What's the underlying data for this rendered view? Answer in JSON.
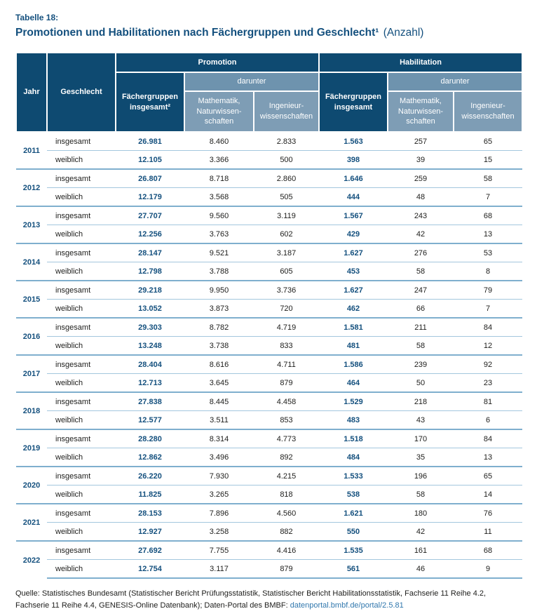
{
  "title": {
    "label": "Tabelle 18:",
    "main": "Promotionen und Habilitationen nach Fächergruppen und Geschlecht¹",
    "suffix": "(Anzahl)"
  },
  "colors": {
    "header_dark": "#0e4a71",
    "header_medium": "#6e93ae",
    "header_light": "#7e9db5",
    "accent_navy": "#14507e",
    "body_text": "#1d1d1b",
    "row_separator": "#a3c7de",
    "group_separator": "#7fafce",
    "link": "#3077ad"
  },
  "header": {
    "jahr": "Jahr",
    "geschlecht": "Geschlecht",
    "promotion": "Promotion",
    "habilitation": "Habilitation",
    "darunter": "darunter",
    "promotion_total": "Fächergruppen\ninsgesamt²",
    "habilitation_total": "Fächergruppen\ninsgesamt",
    "math": "Mathematik,\nNaturwissen-\nschaften",
    "engineering": "Ingenieur-\nwissenschaften"
  },
  "years": [
    {
      "year": "2011",
      "rows": [
        {
          "label": "insgesamt",
          "values": [
            "26.981",
            "8.460",
            "2.833",
            "1.563",
            "257",
            "65"
          ]
        },
        {
          "label": "weiblich",
          "values": [
            "12.105",
            "3.366",
            "500",
            "398",
            "39",
            "15"
          ]
        }
      ]
    },
    {
      "year": "2012",
      "rows": [
        {
          "label": "insgesamt",
          "values": [
            "26.807",
            "8.718",
            "2.860",
            "1.646",
            "259",
            "58"
          ]
        },
        {
          "label": "weiblich",
          "values": [
            "12.179",
            "3.568",
            "505",
            "444",
            "48",
            "7"
          ]
        }
      ]
    },
    {
      "year": "2013",
      "rows": [
        {
          "label": "insgesamt",
          "values": [
            "27.707",
            "9.560",
            "3.119",
            "1.567",
            "243",
            "68"
          ]
        },
        {
          "label": "weiblich",
          "values": [
            "12.256",
            "3.763",
            "602",
            "429",
            "42",
            "13"
          ]
        }
      ]
    },
    {
      "year": "2014",
      "rows": [
        {
          "label": "insgesamt",
          "values": [
            "28.147",
            "9.521",
            "3.187",
            "1.627",
            "276",
            "53"
          ]
        },
        {
          "label": "weiblich",
          "values": [
            "12.798",
            "3.788",
            "605",
            "453",
            "58",
            "8"
          ]
        }
      ]
    },
    {
      "year": "2015",
      "rows": [
        {
          "label": "insgesamt",
          "values": [
            "29.218",
            "9.950",
            "3.736",
            "1.627",
            "247",
            "79"
          ]
        },
        {
          "label": "weiblich",
          "values": [
            "13.052",
            "3.873",
            "720",
            "462",
            "66",
            "7"
          ]
        }
      ]
    },
    {
      "year": "2016",
      "rows": [
        {
          "label": "insgesamt",
          "values": [
            "29.303",
            "8.782",
            "4.719",
            "1.581",
            "211",
            "84"
          ]
        },
        {
          "label": "weiblich",
          "values": [
            "13.248",
            "3.738",
            "833",
            "481",
            "58",
            "12"
          ]
        }
      ]
    },
    {
      "year": "2017",
      "rows": [
        {
          "label": "insgesamt",
          "values": [
            "28.404",
            "8.616",
            "4.711",
            "1.586",
            "239",
            "92"
          ]
        },
        {
          "label": "weiblich",
          "values": [
            "12.713",
            "3.645",
            "879",
            "464",
            "50",
            "23"
          ]
        }
      ]
    },
    {
      "year": "2018",
      "rows": [
        {
          "label": "insgesamt",
          "values": [
            "27.838",
            "8.445",
            "4.458",
            "1.529",
            "218",
            "81"
          ]
        },
        {
          "label": "weiblich",
          "values": [
            "12.577",
            "3.511",
            "853",
            "483",
            "43",
            "6"
          ]
        }
      ]
    },
    {
      "year": "2019",
      "rows": [
        {
          "label": "insgesamt",
          "values": [
            "28.280",
            "8.314",
            "4.773",
            "1.518",
            "170",
            "84"
          ]
        },
        {
          "label": "weiblich",
          "values": [
            "12.862",
            "3.496",
            "892",
            "484",
            "35",
            "13"
          ]
        }
      ]
    },
    {
      "year": "2020",
      "rows": [
        {
          "label": "insgesamt",
          "values": [
            "26.220",
            "7.930",
            "4.215",
            "1.533",
            "196",
            "65"
          ]
        },
        {
          "label": "weiblich",
          "values": [
            "11.825",
            "3.265",
            "818",
            "538",
            "58",
            "14"
          ]
        }
      ]
    },
    {
      "year": "2021",
      "rows": [
        {
          "label": "insgesamt",
          "values": [
            "28.153",
            "7.896",
            "4.560",
            "1.621",
            "180",
            "76"
          ]
        },
        {
          "label": "weiblich",
          "values": [
            "12.927",
            "3.258",
            "882",
            "550",
            "42",
            "11"
          ]
        }
      ]
    },
    {
      "year": "2022",
      "rows": [
        {
          "label": "insgesamt",
          "values": [
            "27.692",
            "7.755",
            "4.416",
            "1.535",
            "161",
            "68"
          ]
        },
        {
          "label": "weiblich",
          "values": [
            "12.754",
            "3.117",
            "879",
            "561",
            "46",
            "9"
          ]
        }
      ]
    }
  ],
  "source": {
    "text": "Quelle: Statistisches Bundesamt (Statistischer Bericht Prüfungsstatistik, Statistischer Bericht Habilitationsstatistik, Fachserie 11 Reihe 4.2, Fachserie 11 Reihe 4.4, GENESIS-Online Datenbank); Daten-Portal des BMBF: ",
    "link": "datenportal.bmbf.de/portal/2.5.81"
  }
}
